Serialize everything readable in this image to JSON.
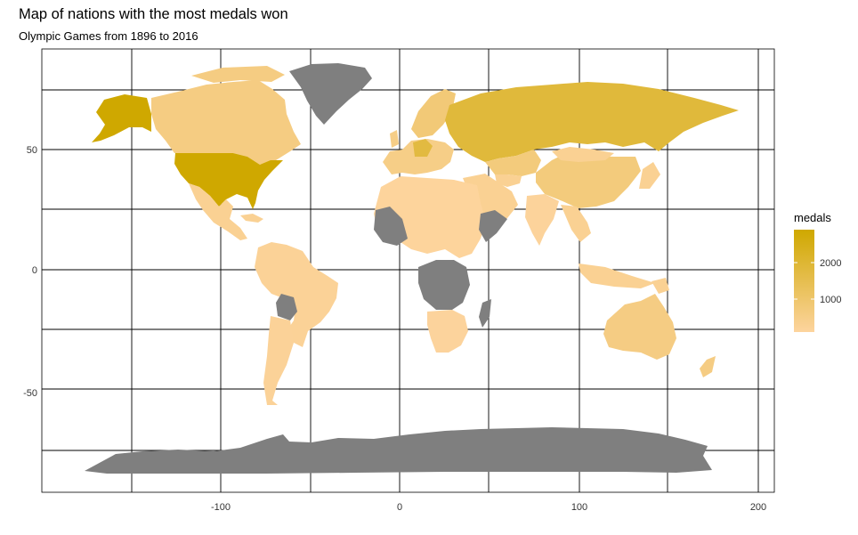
{
  "title": "Map of nations with the most medals won",
  "subtitle": "Olympic Games from 1896 to 2016",
  "chart_data": {
    "type": "choropleth map",
    "title": "Map of nations with the most medals won",
    "subtitle": "Olympic Games from 1896 to 2016",
    "x_axis": {
      "ticks": [
        -100,
        0,
        100,
        200
      ],
      "range": [
        -200,
        210
      ]
    },
    "y_axis": {
      "ticks": [
        -50,
        0,
        50
      ],
      "range": [
        -93,
        94
      ]
    },
    "grid": true,
    "legend": {
      "title": "medals",
      "ticks": [
        2000,
        1000
      ],
      "range": [
        1,
        2800
      ],
      "low_color": "#fdd49e",
      "high_color": "#cfa800",
      "placement": "right"
    },
    "no_data_color": "#7f7f7f",
    "regions": [
      {
        "name": "USA",
        "medals": 2800
      },
      {
        "name": "Alaska (USA)",
        "medals": 2800
      },
      {
        "name": "Russia",
        "medals": 1750
      },
      {
        "name": "Germany",
        "medals": 1650
      },
      {
        "name": "China",
        "medals": 600
      },
      {
        "name": "Kazakhstan",
        "medals": 600
      },
      {
        "name": "Canada",
        "medals": 500
      },
      {
        "name": "Australia",
        "medals": 480
      },
      {
        "name": "Scandinavia",
        "medals": 700
      },
      {
        "name": "Europe",
        "medals": 400
      },
      {
        "name": "Brazil",
        "medals": 130
      },
      {
        "name": "Argentina",
        "medals": 100
      },
      {
        "name": "India",
        "medals": 50
      },
      {
        "name": "North Africa",
        "medals": 30
      },
      {
        "name": "Southern Africa",
        "medals": 40
      },
      {
        "name": "Greenland",
        "medals": null
      },
      {
        "name": "Antarctica",
        "medals": null
      },
      {
        "name": "Central Africa",
        "medals": null
      },
      {
        "name": "Bolivia",
        "medals": null
      },
      {
        "name": "Madagascar",
        "medals": null
      }
    ]
  }
}
